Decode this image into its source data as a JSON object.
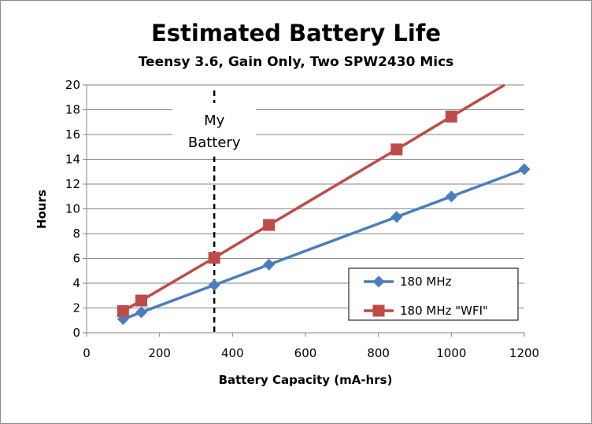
{
  "chart_data": {
    "type": "line",
    "title": "Estimated Battery Life",
    "subtitle": "Teensy 3.6, Gain Only, Two SPW2430 Mics",
    "xlabel": "Battery Capacity (mA-hrs)",
    "ylabel": "Hours",
    "xlim": [
      0,
      1200
    ],
    "ylim": [
      0,
      20
    ],
    "xticks": [
      0,
      200,
      400,
      600,
      800,
      1000,
      1200
    ],
    "yticks": [
      0,
      2,
      4,
      6,
      8,
      10,
      12,
      14,
      16,
      18,
      20
    ],
    "grid": "horizontal",
    "legend_position": "bottom-right",
    "series": [
      {
        "name": "180 MHz",
        "color": "#4a7ebb",
        "marker": "diamond",
        "x": [
          100,
          150,
          350,
          500,
          850,
          1000,
          1200
        ],
        "y": [
          1.1,
          1.65,
          3.85,
          5.5,
          9.35,
          11.0,
          13.2
        ]
      },
      {
        "name": "180 MHz \"WFI\"",
        "color": "#be4b48",
        "marker": "square",
        "x": [
          100,
          150,
          350,
          500,
          850,
          1000
        ],
        "y": [
          1.75,
          2.6,
          6.05,
          8.7,
          14.8,
          17.45
        ],
        "trend_to": [
          1200,
          20.94
        ]
      }
    ],
    "annotation": {
      "label_lines": [
        "My",
        "Battery"
      ],
      "x": 350,
      "style": "dashed-vertical-line",
      "color": "#000000"
    }
  }
}
